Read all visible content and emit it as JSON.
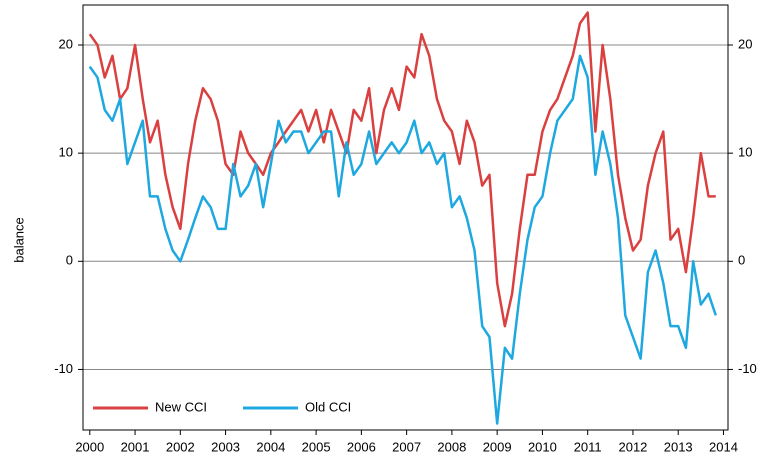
{
  "chart_data": {
    "type": "line",
    "y_label": "balance",
    "x": [
      2000,
      2000.17,
      2000.33,
      2000.5,
      2000.67,
      2000.83,
      2001,
      2001.17,
      2001.33,
      2001.5,
      2001.67,
      2001.83,
      2002,
      2002.17,
      2002.33,
      2002.5,
      2002.67,
      2002.83,
      2003,
      2003.17,
      2003.33,
      2003.5,
      2003.67,
      2003.83,
      2004,
      2004.17,
      2004.33,
      2004.5,
      2004.67,
      2004.83,
      2005,
      2005.17,
      2005.33,
      2005.5,
      2005.67,
      2005.83,
      2006,
      2006.17,
      2006.33,
      2006.5,
      2006.67,
      2006.83,
      2007,
      2007.17,
      2007.33,
      2007.5,
      2007.67,
      2007.83,
      2008,
      2008.17,
      2008.33,
      2008.5,
      2008.67,
      2008.83,
      2009,
      2009.17,
      2009.33,
      2009.5,
      2009.67,
      2009.83,
      2010,
      2010.17,
      2010.33,
      2010.5,
      2010.67,
      2010.83,
      2011,
      2011.17,
      2011.33,
      2011.5,
      2011.67,
      2011.83,
      2012,
      2012.17,
      2012.33,
      2012.5,
      2012.67,
      2012.83,
      2013,
      2013.17,
      2013.33,
      2013.5,
      2013.67,
      2013.83
    ],
    "series": [
      {
        "name": "New CCI",
        "color": "#d9403f",
        "values": [
          21,
          20,
          17,
          19,
          15,
          16,
          20,
          15,
          11,
          13,
          8,
          5,
          3,
          9,
          13,
          16,
          15,
          13,
          9,
          8,
          12,
          10,
          9,
          8,
          10,
          11,
          12,
          13,
          14,
          12,
          14,
          11,
          14,
          12,
          10,
          14,
          13,
          16,
          10,
          14,
          16,
          14,
          18,
          17,
          21,
          19,
          15,
          13,
          12,
          9,
          13,
          11,
          7,
          8,
          -2,
          -6,
          -3,
          3,
          8,
          8,
          12,
          14,
          15,
          17,
          19,
          22,
          23,
          12,
          20,
          15,
          8,
          4,
          1,
          2,
          7,
          10,
          12,
          2,
          3,
          -1,
          4,
          10,
          6,
          6
        ]
      },
      {
        "name": "Old CCI",
        "color": "#1ea8e0",
        "values": [
          18,
          17,
          14,
          13,
          15,
          9,
          11,
          13,
          6,
          6,
          3,
          1,
          0,
          2,
          4,
          6,
          5,
          3,
          3,
          9,
          6,
          7,
          9,
          5,
          9,
          13,
          11,
          12,
          12,
          10,
          11,
          12,
          12,
          6,
          11,
          8,
          9,
          12,
          9,
          10,
          11,
          10,
          11,
          13,
          10,
          11,
          9,
          10,
          5,
          6,
          4,
          1,
          -6,
          -7,
          -15,
          -8,
          -9,
          -3,
          2,
          5,
          6,
          10,
          13,
          14,
          15,
          19,
          17,
          8,
          12,
          9,
          4,
          -5,
          -7,
          -9,
          -1,
          1,
          -2,
          -6,
          -6,
          -8,
          0,
          -4,
          -3,
          -5
        ]
      }
    ],
    "xlim": [
      1999.85,
      2014.1
    ],
    "xticks": [
      2000,
      2001,
      2002,
      2003,
      2004,
      2005,
      2006,
      2007,
      2008,
      2009,
      2010,
      2011,
      2012,
      2013,
      2014
    ],
    "ylim": [
      -15.6,
      23.7
    ],
    "yticks": [
      -10,
      0,
      10,
      20
    ],
    "y2lim": [
      -15.6,
      23.7
    ],
    "y2ticks": [
      -10,
      0,
      10,
      20
    ],
    "grid": true,
    "legend": "lower left"
  }
}
